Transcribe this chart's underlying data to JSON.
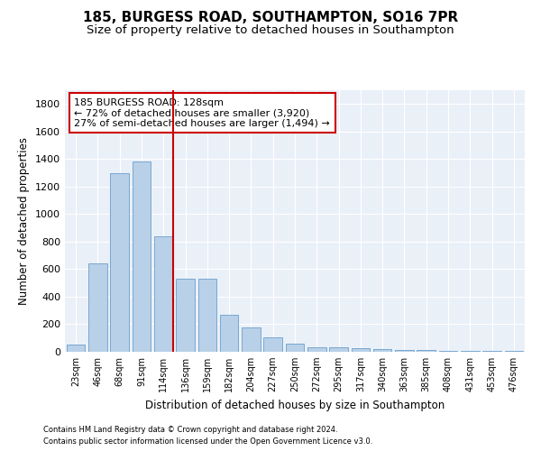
{
  "title": "185, BURGESS ROAD, SOUTHAMPTON, SO16 7PR",
  "subtitle": "Size of property relative to detached houses in Southampton",
  "xlabel": "Distribution of detached houses by size in Southampton",
  "ylabel": "Number of detached properties",
  "categories": [
    "23sqm",
    "46sqm",
    "68sqm",
    "91sqm",
    "114sqm",
    "136sqm",
    "159sqm",
    "182sqm",
    "204sqm",
    "227sqm",
    "250sqm",
    "272sqm",
    "295sqm",
    "317sqm",
    "340sqm",
    "363sqm",
    "385sqm",
    "408sqm",
    "431sqm",
    "453sqm",
    "476sqm"
  ],
  "values": [
    50,
    640,
    1300,
    1380,
    840,
    530,
    530,
    270,
    180,
    105,
    60,
    30,
    30,
    25,
    20,
    15,
    10,
    5,
    5,
    5,
    5
  ],
  "bar_color": "#b8d0e8",
  "bar_edge_color": "#6a9fcb",
  "vline_color": "#cc0000",
  "annotation_text": "185 BURGESS ROAD: 128sqm\n← 72% of detached houses are smaller (3,920)\n27% of semi-detached houses are larger (1,494) →",
  "annotation_box_color": "#ffffff",
  "annotation_box_edge_color": "#cc0000",
  "ylim": [
    0,
    1900
  ],
  "yticks": [
    0,
    200,
    400,
    600,
    800,
    1000,
    1200,
    1400,
    1600,
    1800
  ],
  "footer_line1": "Contains HM Land Registry data © Crown copyright and database right 2024.",
  "footer_line2": "Contains public sector information licensed under the Open Government Licence v3.0.",
  "bg_color": "#eaf0f8",
  "title_fontsize": 11,
  "subtitle_fontsize": 9.5
}
